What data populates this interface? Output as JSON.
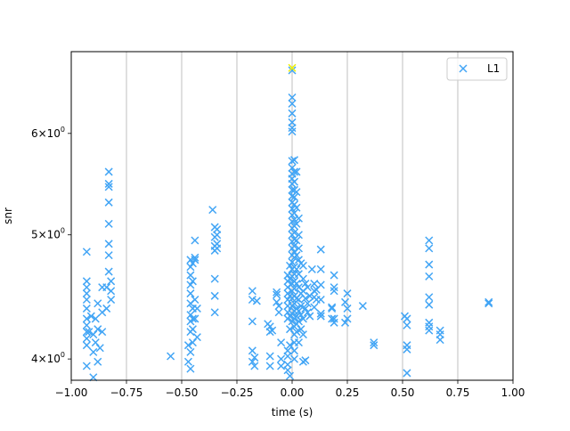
{
  "chart_data": {
    "type": "scatter",
    "xlabel": "time (s)",
    "ylabel": "snr",
    "xlim": [
      -1.0,
      1.0
    ],
    "ylim": [
      3.85,
      6.95
    ],
    "yscale": "log",
    "grid": "x-only",
    "legend_position": "upper right",
    "x_ticks": [
      -1.0,
      -0.75,
      -0.5,
      -0.25,
      0.0,
      0.25,
      0.5,
      0.75,
      1.0
    ],
    "x_tick_labels": [
      "−1.00",
      "−0.75",
      "−0.50",
      "−0.25",
      "0.00",
      "0.25",
      "0.50",
      "0.75",
      "1.00"
    ],
    "y_ticks": [
      4,
      5,
      6
    ],
    "y_tick_labels": [
      {
        "base": "4",
        "mult": "×10",
        "exp": "0"
      },
      {
        "base": "5",
        "mult": "×10",
        "exp": "0"
      },
      {
        "base": "6",
        "mult": "×10",
        "exp": "0"
      }
    ],
    "series": [
      {
        "name": "L1",
        "marker": "x",
        "color": "#42a5f5",
        "points": [
          [
            -0.93,
            4.6
          ],
          [
            -0.93,
            4.55
          ],
          [
            -0.93,
            4.5
          ],
          [
            -0.93,
            4.45
          ],
          [
            -0.93,
            4.38
          ],
          [
            -0.93,
            4.3
          ],
          [
            -0.93,
            4.25
          ],
          [
            -0.93,
            4.2
          ],
          [
            -0.93,
            4.15
          ],
          [
            -0.93,
            4.1
          ],
          [
            -0.93,
            3.95
          ],
          [
            -0.93,
            4.85
          ],
          [
            -0.92,
            4.2
          ],
          [
            -0.91,
            4.32
          ],
          [
            -0.9,
            4.18
          ],
          [
            -0.9,
            4.05
          ],
          [
            -0.89,
            4.12
          ],
          [
            -0.89,
            4.3
          ],
          [
            -0.88,
            4.42
          ],
          [
            -0.88,
            4.22
          ],
          [
            -0.9,
            3.87
          ],
          [
            -0.88,
            3.98
          ],
          [
            -0.87,
            4.08
          ],
          [
            -0.86,
            4.2
          ],
          [
            -0.86,
            4.35
          ],
          [
            -0.86,
            4.55
          ],
          [
            -0.84,
            4.55
          ],
          [
            -0.84,
            4.38
          ],
          [
            -0.83,
            4.68
          ],
          [
            -0.83,
            4.82
          ],
          [
            -0.83,
            4.92
          ],
          [
            -0.83,
            5.1
          ],
          [
            -0.83,
            5.3
          ],
          [
            -0.83,
            5.45
          ],
          [
            -0.83,
            5.48
          ],
          [
            -0.83,
            5.6
          ],
          [
            -0.82,
            4.45
          ],
          [
            -0.82,
            4.6
          ],
          [
            -0.82,
            4.52
          ],
          [
            -0.55,
            4.02
          ],
          [
            -0.47,
            3.98
          ],
          [
            -0.47,
            4.1
          ],
          [
            -0.46,
            4.2
          ],
          [
            -0.46,
            4.28
          ],
          [
            -0.46,
            4.33
          ],
          [
            -0.46,
            4.42
          ],
          [
            -0.46,
            4.5
          ],
          [
            -0.46,
            4.57
          ],
          [
            -0.46,
            4.65
          ],
          [
            -0.46,
            4.72
          ],
          [
            -0.46,
            4.78
          ],
          [
            -0.46,
            3.93
          ],
          [
            -0.46,
            4.05
          ],
          [
            -0.45,
            4.3
          ],
          [
            -0.45,
            4.22
          ],
          [
            -0.45,
            4.12
          ],
          [
            -0.45,
            4.38
          ],
          [
            -0.45,
            4.6
          ],
          [
            -0.45,
            4.75
          ],
          [
            -0.44,
            4.8
          ],
          [
            -0.44,
            4.78
          ],
          [
            -0.44,
            4.95
          ],
          [
            -0.44,
            4.45
          ],
          [
            -0.44,
            4.3
          ],
          [
            -0.43,
            4.16
          ],
          [
            -0.43,
            4.38
          ],
          [
            -0.36,
            5.23
          ],
          [
            -0.35,
            4.98
          ],
          [
            -0.35,
            5.07
          ],
          [
            -0.35,
            4.9
          ],
          [
            -0.35,
            4.86
          ],
          [
            -0.35,
            4.62
          ],
          [
            -0.35,
            4.48
          ],
          [
            -0.35,
            4.35
          ],
          [
            -0.34,
            5.0
          ],
          [
            -0.34,
            4.92
          ],
          [
            -0.34,
            4.88
          ],
          [
            -0.34,
            5.05
          ],
          [
            -0.18,
            4.52
          ],
          [
            -0.18,
            4.45
          ],
          [
            -0.18,
            4.28
          ],
          [
            -0.18,
            4.06
          ],
          [
            -0.18,
            3.98
          ],
          [
            -0.17,
            4.01
          ],
          [
            -0.17,
            3.95
          ],
          [
            -0.16,
            4.44
          ],
          [
            -0.11,
            4.26
          ],
          [
            -0.1,
            4.24
          ],
          [
            -0.1,
            4.2
          ],
          [
            -0.1,
            4.02
          ],
          [
            -0.1,
            3.95
          ],
          [
            -0.09,
            4.21
          ],
          [
            -0.07,
            4.51
          ],
          [
            -0.07,
            4.49
          ],
          [
            -0.07,
            4.43
          ],
          [
            -0.06,
            4.35
          ],
          [
            -0.06,
            4.4
          ],
          [
            -0.05,
            4.0
          ],
          [
            -0.05,
            3.95
          ],
          [
            -0.05,
            4.12
          ],
          [
            -0.02,
            4.65
          ],
          [
            -0.02,
            4.6
          ],
          [
            -0.02,
            4.55
          ],
          [
            -0.02,
            4.5
          ],
          [
            -0.02,
            4.45
          ],
          [
            -0.02,
            4.4
          ],
          [
            -0.02,
            4.35
          ],
          [
            -0.02,
            4.3
          ],
          [
            -0.02,
            3.96
          ],
          [
            -0.02,
            3.92
          ],
          [
            -0.02,
            4.06
          ],
          [
            -0.02,
            4.02
          ],
          [
            -0.01,
            4.73
          ],
          [
            -0.01,
            4.62
          ],
          [
            -0.01,
            4.48
          ],
          [
            -0.01,
            4.32
          ],
          [
            -0.01,
            4.22
          ],
          [
            -0.01,
            4.1
          ],
          [
            -0.01,
            3.88
          ],
          [
            0.0,
            6.72
          ],
          [
            0.0,
            6.4
          ],
          [
            0.0,
            6.33
          ],
          [
            0.0,
            6.22
          ],
          [
            0.0,
            6.12
          ],
          [
            0.0,
            6.06
          ],
          [
            0.0,
            6.02
          ],
          [
            0.0,
            5.71
          ],
          [
            0.0,
            5.64
          ],
          [
            0.0,
            5.58
          ],
          [
            0.0,
            5.53
          ],
          [
            0.0,
            5.48
          ],
          [
            0.0,
            5.42
          ],
          [
            0.0,
            5.36
          ],
          [
            0.0,
            5.3
          ],
          [
            0.0,
            5.24
          ],
          [
            0.0,
            5.18
          ],
          [
            0.0,
            5.12
          ],
          [
            0.0,
            5.06
          ],
          [
            0.0,
            5.0
          ],
          [
            0.0,
            4.94
          ],
          [
            0.0,
            4.88
          ],
          [
            0.0,
            4.82
          ],
          [
            0.0,
            4.76
          ],
          [
            0.0,
            4.7
          ],
          [
            0.0,
            4.64
          ],
          [
            0.0,
            4.58
          ],
          [
            0.0,
            4.52
          ],
          [
            0.0,
            4.46
          ],
          [
            0.0,
            4.4
          ],
          [
            0.0,
            4.34
          ],
          [
            0.0,
            4.28
          ],
          [
            0.01,
            5.72
          ],
          [
            0.01,
            5.6
          ],
          [
            0.01,
            5.5
          ],
          [
            0.01,
            5.42
          ],
          [
            0.01,
            5.35
          ],
          [
            0.01,
            5.28
          ],
          [
            0.01,
            5.2
          ],
          [
            0.01,
            5.14
          ],
          [
            0.01,
            5.08
          ],
          [
            0.01,
            5.02
          ],
          [
            0.01,
            4.96
          ],
          [
            0.01,
            4.9
          ],
          [
            0.01,
            4.85
          ],
          [
            0.01,
            4.8
          ],
          [
            0.01,
            4.72
          ],
          [
            0.01,
            4.66
          ],
          [
            0.01,
            4.6
          ],
          [
            0.01,
            4.54
          ],
          [
            0.01,
            4.48
          ],
          [
            0.01,
            4.42
          ],
          [
            0.01,
            4.36
          ],
          [
            0.01,
            4.3
          ],
          [
            0.01,
            4.24
          ],
          [
            0.01,
            4.18
          ],
          [
            0.01,
            4.12
          ],
          [
            0.01,
            4.06
          ],
          [
            0.01,
            4.0
          ],
          [
            0.02,
            5.6
          ],
          [
            0.02,
            5.4
          ],
          [
            0.02,
            5.25
          ],
          [
            0.02,
            5.1
          ],
          [
            0.02,
            4.95
          ],
          [
            0.02,
            4.82
          ],
          [
            0.02,
            4.7
          ],
          [
            0.02,
            4.58
          ],
          [
            0.02,
            4.46
          ],
          [
            0.02,
            4.38
          ],
          [
            0.02,
            4.32
          ],
          [
            0.02,
            4.26
          ],
          [
            0.02,
            4.2
          ],
          [
            0.03,
            5.15
          ],
          [
            0.03,
            5.0
          ],
          [
            0.03,
            4.88
          ],
          [
            0.03,
            4.78
          ],
          [
            0.03,
            4.66
          ],
          [
            0.03,
            4.55
          ],
          [
            0.03,
            4.45
          ],
          [
            0.03,
            4.36
          ],
          [
            0.03,
            4.28
          ],
          [
            0.03,
            4.12
          ],
          [
            0.04,
            4.75
          ],
          [
            0.04,
            4.5
          ],
          [
            0.04,
            4.4
          ],
          [
            0.04,
            4.33
          ],
          [
            0.04,
            4.22
          ],
          [
            0.05,
            4.73
          ],
          [
            0.05,
            4.62
          ],
          [
            0.05,
            4.52
          ],
          [
            0.05,
            4.3
          ],
          [
            0.05,
            4.18
          ],
          [
            0.05,
            3.98
          ],
          [
            0.06,
            4.58
          ],
          [
            0.06,
            4.46
          ],
          [
            0.06,
            4.38
          ],
          [
            0.06,
            3.99
          ],
          [
            0.07,
            4.55
          ],
          [
            0.07,
            4.42
          ],
          [
            0.07,
            4.35
          ],
          [
            0.08,
            4.48
          ],
          [
            0.08,
            4.32
          ],
          [
            0.09,
            4.7
          ],
          [
            0.1,
            4.58
          ],
          [
            0.1,
            4.52
          ],
          [
            0.1,
            4.47
          ],
          [
            0.1,
            4.39
          ],
          [
            0.11,
            4.53
          ],
          [
            0.11,
            4.45
          ],
          [
            0.13,
            4.87
          ],
          [
            0.13,
            4.7
          ],
          [
            0.13,
            4.57
          ],
          [
            0.13,
            4.45
          ],
          [
            0.13,
            4.34
          ],
          [
            0.13,
            4.32
          ],
          [
            0.18,
            4.3
          ],
          [
            0.18,
            4.39
          ],
          [
            0.18,
            4.38
          ],
          [
            0.19,
            4.55
          ],
          [
            0.19,
            4.52
          ],
          [
            0.19,
            4.3
          ],
          [
            0.19,
            4.27
          ],
          [
            0.19,
            4.65
          ],
          [
            0.24,
            4.43
          ],
          [
            0.24,
            4.27
          ],
          [
            0.25,
            4.38
          ],
          [
            0.25,
            4.3
          ],
          [
            0.25,
            4.5
          ],
          [
            0.32,
            4.4
          ],
          [
            0.37,
            4.12
          ],
          [
            0.37,
            4.1
          ],
          [
            0.51,
            4.32
          ],
          [
            0.52,
            4.3
          ],
          [
            0.52,
            4.25
          ],
          [
            0.52,
            4.1
          ],
          [
            0.52,
            4.07
          ],
          [
            0.52,
            3.9
          ],
          [
            0.62,
            4.95
          ],
          [
            0.62,
            4.88
          ],
          [
            0.62,
            4.74
          ],
          [
            0.62,
            4.64
          ],
          [
            0.62,
            4.47
          ],
          [
            0.62,
            4.41
          ],
          [
            0.62,
            4.27
          ],
          [
            0.62,
            4.24
          ],
          [
            0.62,
            4.21
          ],
          [
            0.67,
            4.21
          ],
          [
            0.67,
            4.18
          ],
          [
            0.67,
            4.14
          ],
          [
            0.89,
            4.43
          ],
          [
            0.89,
            4.42
          ]
        ]
      },
      {
        "name": "",
        "marker": "x",
        "color": "#f0f000",
        "points": [
          [
            0.0,
            6.75
          ]
        ]
      }
    ]
  },
  "legend": {
    "label": "L1"
  }
}
